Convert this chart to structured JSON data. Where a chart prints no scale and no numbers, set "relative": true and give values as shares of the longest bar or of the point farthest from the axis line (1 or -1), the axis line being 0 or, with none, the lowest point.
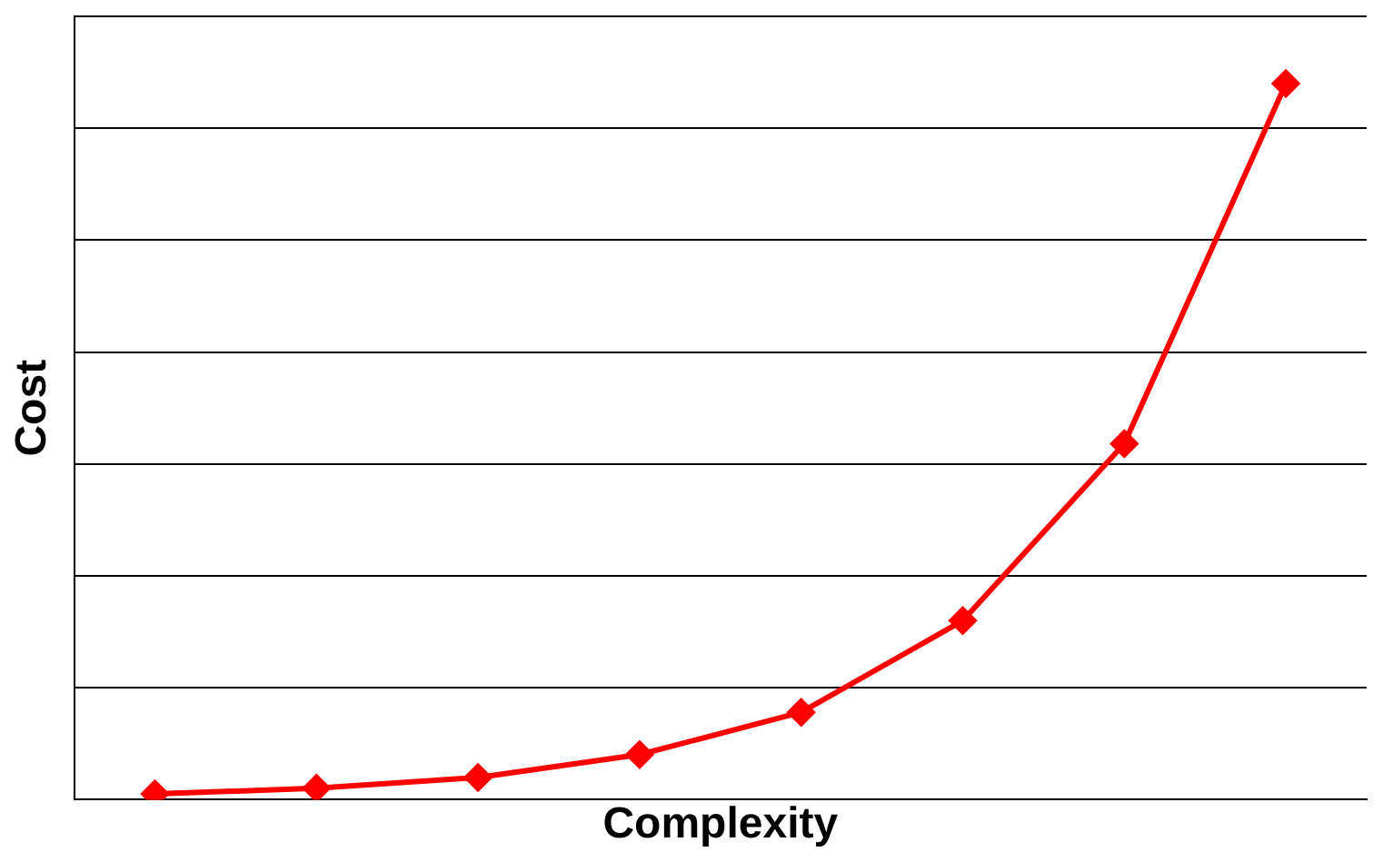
{
  "chart_data": {
    "type": "line",
    "xlabel": "Complexity",
    "ylabel": "Cost",
    "relative": true,
    "categories": [
      null,
      null,
      null,
      null,
      null,
      null,
      null,
      null
    ],
    "series": [
      {
        "color": "#ff0000",
        "values": [
          0.008,
          0.016,
          0.031,
          0.063,
          0.122,
          0.25,
          0.497,
          1
        ]
      }
    ],
    "grid": "y",
    "legend": false,
    "marker": "diamond",
    "line_style": "solid"
  }
}
